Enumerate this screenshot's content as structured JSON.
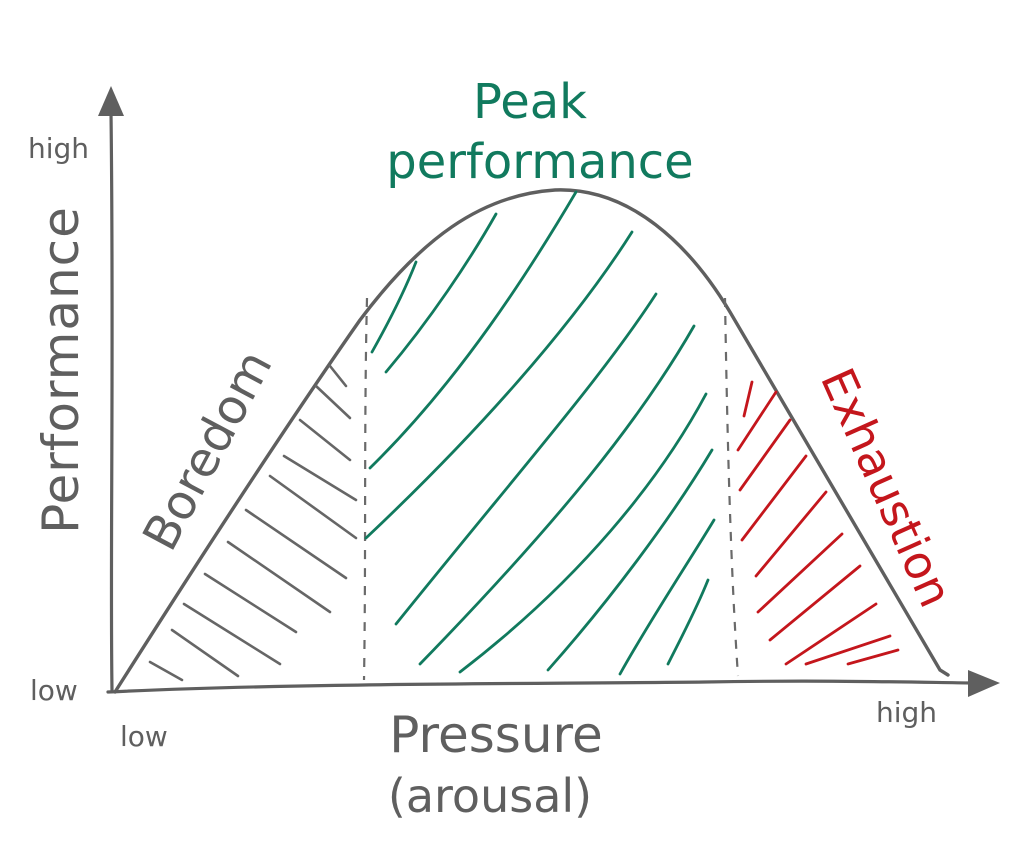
{
  "diagram": {
    "y_axis_label": "Performance",
    "y_high": "high",
    "y_low": "low",
    "x_axis_label": "Pressure",
    "x_axis_sublabel": "(arousal)",
    "x_low": "low",
    "x_high": "high",
    "zones": {
      "boredom": "Boredom",
      "peak": "Peak performance",
      "peak_line1": "Peak",
      "peak_line2": "performance",
      "exhaustion": "Exhaustion"
    }
  },
  "colors": {
    "ink": "#5f5f5f",
    "peak": "#117a5e",
    "exhaustion": "#c4161c"
  }
}
